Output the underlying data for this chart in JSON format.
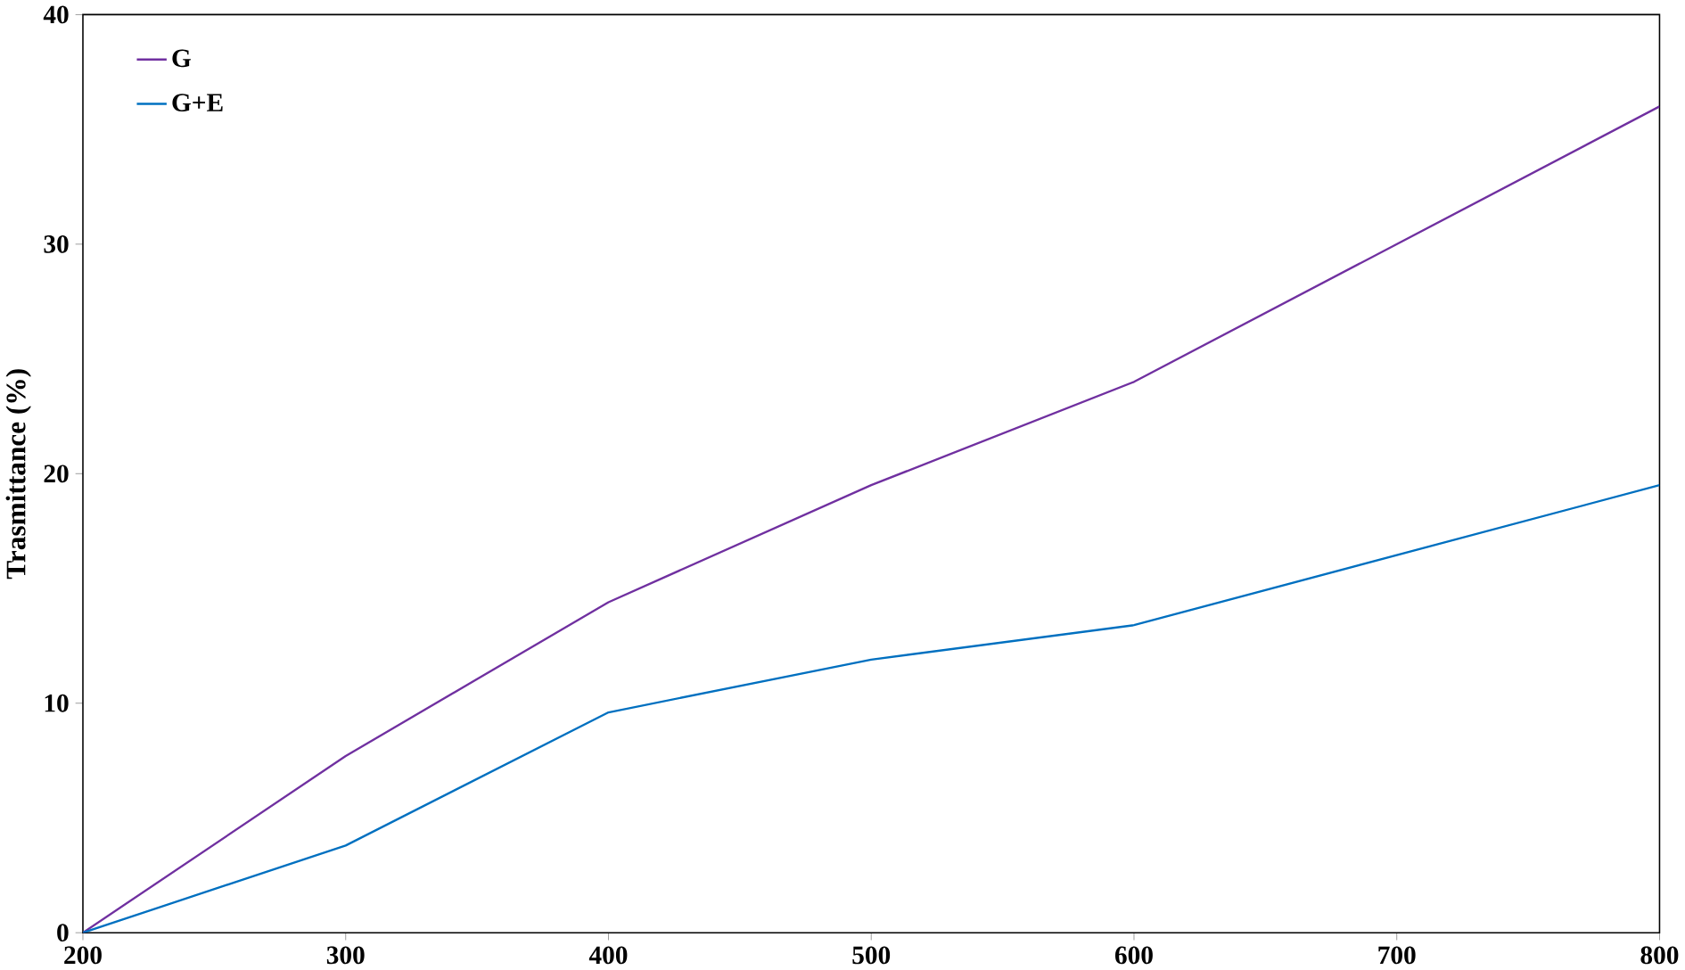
{
  "chart_data": {
    "type": "line",
    "ylabel": "Trasmittance (%)",
    "x": [
      200,
      300,
      400,
      500,
      600,
      800
    ],
    "series": [
      {
        "name": "G",
        "color": "#7030a0",
        "values": [
          0,
          7.7,
          14.4,
          19.5,
          24.0,
          36.0
        ]
      },
      {
        "name": "G+E",
        "color": "#0070c0",
        "values": [
          0,
          3.8,
          9.6,
          11.9,
          13.4,
          19.5
        ]
      }
    ],
    "xlim": [
      200,
      800
    ],
    "ylim": [
      0,
      40
    ],
    "xticks": [
      200,
      300,
      400,
      500,
      600,
      700,
      800
    ],
    "yticks": [
      0,
      10,
      20,
      30,
      40
    ],
    "legend": "top left",
    "grid": false,
    "marker": "none",
    "line_style": "solid"
  }
}
